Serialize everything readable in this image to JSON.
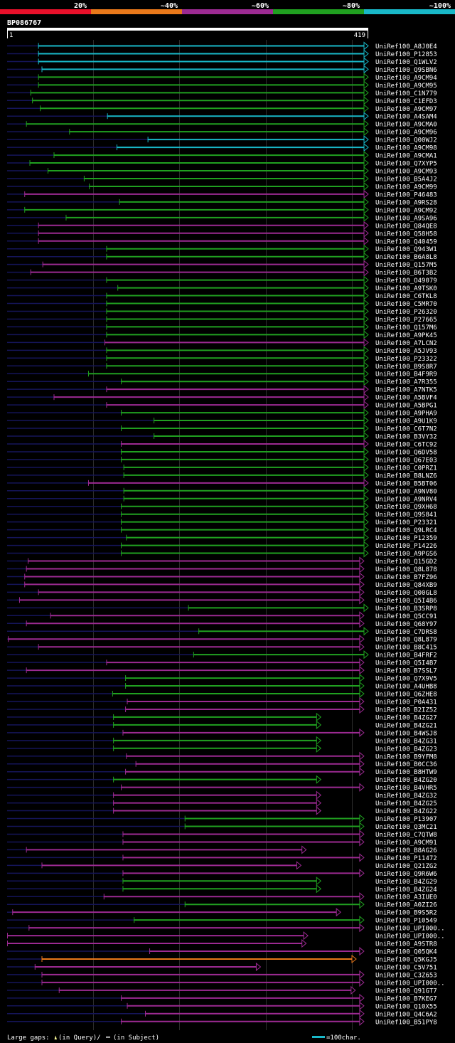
{
  "chart_data": {
    "type": "alignment-overview",
    "title": "BP086767",
    "query_start": "1",
    "query_end": "419",
    "query_length": 419,
    "identity_legend": [
      {
        "label": "20%",
        "color": "#e8102a"
      },
      {
        "label": "~40%",
        "color": "#e8781a"
      },
      {
        "label": "~60%",
        "color": "#9c2a92"
      },
      {
        "label": "~80%",
        "color": "#20a020"
      },
      {
        "label": "~100%",
        "color": "#19b8c8"
      }
    ],
    "footer_gaps_text": "Large gaps: ▲(in Query)/– (in Subject)",
    "footer_gap_query_text": "(in Query)/",
    "footer_gap_subject_text": "(in Subject)",
    "footer_scale_text": "=100char.",
    "hits": [
      {
        "name": "UniRef100_A8J0E4",
        "start": 36,
        "end": 419,
        "id": "~100%"
      },
      {
        "name": "UniRef100_P12853",
        "start": 36,
        "end": 419,
        "id": "~100%"
      },
      {
        "name": "UniRef100_Q1WLV2",
        "start": 36,
        "end": 419,
        "id": "~100%"
      },
      {
        "name": "UniRef100_Q9SBN6",
        "start": 40,
        "end": 419,
        "id": "~100%"
      },
      {
        "name": "UniRef100_A9CM94",
        "start": 36,
        "end": 419,
        "id": "~80%"
      },
      {
        "name": "UniRef100_A9CM95",
        "start": 36,
        "end": 419,
        "id": "~80%"
      },
      {
        "name": "UniRef100_C1N779",
        "start": 27,
        "end": 419,
        "id": "~80%"
      },
      {
        "name": "UniRef100_C1EFD3",
        "start": 29,
        "end": 419,
        "id": "~80%"
      },
      {
        "name": "UniRef100_A9CM97",
        "start": 38,
        "end": 419,
        "id": "~80%"
      },
      {
        "name": "UniRef100_A4SAM4",
        "start": 116,
        "end": 419,
        "id": "~100%"
      },
      {
        "name": "UniRef100_A9CMA0",
        "start": 22,
        "end": 419,
        "id": "~80%"
      },
      {
        "name": "UniRef100_A9CM96",
        "start": 72,
        "end": 419,
        "id": "~80%"
      },
      {
        "name": "UniRef100_Q00WJ2",
        "start": 163,
        "end": 419,
        "id": "~100%"
      },
      {
        "name": "UniRef100_A9CM98",
        "start": 127,
        "end": 419,
        "id": "~100%"
      },
      {
        "name": "UniRef100_A9CMA1",
        "start": 54,
        "end": 419,
        "id": "~80%"
      },
      {
        "name": "UniRef100_Q7XYP5",
        "start": 26,
        "end": 419,
        "id": "~80%"
      },
      {
        "name": "UniRef100_A9CM93",
        "start": 47,
        "end": 419,
        "id": "~80%"
      },
      {
        "name": "UniRef100_B5A4J2",
        "start": 89,
        "end": 419,
        "id": "~80%"
      },
      {
        "name": "UniRef100_A9CM99",
        "start": 95,
        "end": 419,
        "id": "~80%"
      },
      {
        "name": "UniRef100_P46483",
        "start": 20,
        "end": 419,
        "id": "~60%"
      },
      {
        "name": "UniRef100_A9RS28",
        "start": 130,
        "end": 419,
        "id": "~80%"
      },
      {
        "name": "UniRef100_A9CM92",
        "start": 20,
        "end": 419,
        "id": "~80%"
      },
      {
        "name": "UniRef100_A9SA96",
        "start": 68,
        "end": 419,
        "id": "~80%"
      },
      {
        "name": "UniRef100_Q84QE8",
        "start": 36,
        "end": 419,
        "id": "~60%"
      },
      {
        "name": "UniRef100_Q58H58",
        "start": 36,
        "end": 419,
        "id": "~60%"
      },
      {
        "name": "UniRef100_Q40459",
        "start": 36,
        "end": 419,
        "id": "~60%"
      },
      {
        "name": "UniRef100_Q943W1",
        "start": 115,
        "end": 419,
        "id": "~80%"
      },
      {
        "name": "UniRef100_B6A8L8",
        "start": 115,
        "end": 419,
        "id": "~80%"
      },
      {
        "name": "UniRef100_Q157M5",
        "start": 41,
        "end": 419,
        "id": "~60%"
      },
      {
        "name": "UniRef100_B6T3B2",
        "start": 27,
        "end": 419,
        "id": "~60%"
      },
      {
        "name": "UniRef100_O49079",
        "start": 115,
        "end": 419,
        "id": "~80%"
      },
      {
        "name": "UniRef100_A9TSK0",
        "start": 128,
        "end": 419,
        "id": "~80%"
      },
      {
        "name": "UniRef100_C6TKL8",
        "start": 115,
        "end": 419,
        "id": "~80%"
      },
      {
        "name": "UniRef100_C5MR70",
        "start": 115,
        "end": 419,
        "id": "~80%"
      },
      {
        "name": "UniRef100_P26320",
        "start": 115,
        "end": 419,
        "id": "~80%"
      },
      {
        "name": "UniRef100_P27665",
        "start": 115,
        "end": 419,
        "id": "~80%"
      },
      {
        "name": "UniRef100_Q157M6",
        "start": 115,
        "end": 419,
        "id": "~80%"
      },
      {
        "name": "UniRef100_A9PK45",
        "start": 115,
        "end": 419,
        "id": "~80%"
      },
      {
        "name": "UniRef100_A7LCN2",
        "start": 113,
        "end": 419,
        "id": "~60%"
      },
      {
        "name": "UniRef100_A5JV93",
        "start": 115,
        "end": 419,
        "id": "~80%"
      },
      {
        "name": "UniRef100_P23322",
        "start": 115,
        "end": 419,
        "id": "~80%"
      },
      {
        "name": "UniRef100_B9S8R7",
        "start": 115,
        "end": 419,
        "id": "~80%"
      },
      {
        "name": "UniRef100_B4F9R9",
        "start": 94,
        "end": 419,
        "id": "~80%"
      },
      {
        "name": "UniRef100_A7R355",
        "start": 132,
        "end": 419,
        "id": "~80%"
      },
      {
        "name": "UniRef100_A7NTK5",
        "start": 115,
        "end": 419,
        "id": "~60%"
      },
      {
        "name": "UniRef100_A5BVF4",
        "start": 54,
        "end": 419,
        "id": "~60%"
      },
      {
        "name": "UniRef100_A5BPG1",
        "start": 115,
        "end": 419,
        "id": "~60%"
      },
      {
        "name": "UniRef100_A9PHA9",
        "start": 132,
        "end": 419,
        "id": "~80%"
      },
      {
        "name": "UniRef100_A9U1K9",
        "start": 170,
        "end": 419,
        "id": "~80%"
      },
      {
        "name": "UniRef100_C6T7N2",
        "start": 132,
        "end": 419,
        "id": "~80%"
      },
      {
        "name": "UniRef100_B3VY32",
        "start": 170,
        "end": 419,
        "id": "~80%"
      },
      {
        "name": "UniRef100_C6TC92",
        "start": 132,
        "end": 419,
        "id": "~60%"
      },
      {
        "name": "UniRef100_Q6DV58",
        "start": 132,
        "end": 419,
        "id": "~80%"
      },
      {
        "name": "UniRef100_Q67E03",
        "start": 132,
        "end": 419,
        "id": "~80%"
      },
      {
        "name": "UniRef100_C0PRZ1",
        "start": 135,
        "end": 419,
        "id": "~80%"
      },
      {
        "name": "UniRef100_B8LNZ6",
        "start": 135,
        "end": 419,
        "id": "~80%"
      },
      {
        "name": "UniRef100_B5BT06",
        "start": 94,
        "end": 419,
        "id": "~60%"
      },
      {
        "name": "UniRef100_A9NV80",
        "start": 135,
        "end": 419,
        "id": "~80%"
      },
      {
        "name": "UniRef100_A9NRV4",
        "start": 135,
        "end": 419,
        "id": "~80%"
      },
      {
        "name": "UniRef100_Q9XH68",
        "start": 132,
        "end": 419,
        "id": "~80%"
      },
      {
        "name": "UniRef100_Q9S841",
        "start": 132,
        "end": 419,
        "id": "~80%"
      },
      {
        "name": "UniRef100_P23321",
        "start": 132,
        "end": 419,
        "id": "~80%"
      },
      {
        "name": "UniRef100_Q9LRC4",
        "start": 132,
        "end": 419,
        "id": "~80%"
      },
      {
        "name": "UniRef100_P12359",
        "start": 138,
        "end": 419,
        "id": "~80%"
      },
      {
        "name": "UniRef100_P14226",
        "start": 132,
        "end": 419,
        "id": "~80%"
      },
      {
        "name": "UniRef100_A9PGS6",
        "start": 132,
        "end": 419,
        "id": "~80%"
      },
      {
        "name": "UniRef100_Q15GD2",
        "start": 24,
        "end": 414,
        "id": "~60%"
      },
      {
        "name": "UniRef100_Q8L878",
        "start": 22,
        "end": 414,
        "id": "~60%"
      },
      {
        "name": "UniRef100_B7FZ96",
        "start": 20,
        "end": 414,
        "id": "~60%"
      },
      {
        "name": "UniRef100_Q84XB9",
        "start": 20,
        "end": 414,
        "id": "~60%"
      },
      {
        "name": "UniRef100_Q00GL8",
        "start": 36,
        "end": 414,
        "id": "~60%"
      },
      {
        "name": "UniRef100_Q5I4B6",
        "start": 14,
        "end": 414,
        "id": "~60%"
      },
      {
        "name": "UniRef100_B3SRP8",
        "start": 210,
        "end": 419,
        "id": "~80%"
      },
      {
        "name": "UniRef100_Q5CC91",
        "start": 50,
        "end": 414,
        "id": "~60%"
      },
      {
        "name": "UniRef100_Q68Y97",
        "start": 22,
        "end": 414,
        "id": "~60%"
      },
      {
        "name": "UniRef100_C7DRS8",
        "start": 222,
        "end": 419,
        "id": "~80%"
      },
      {
        "name": "UniRef100_Q8L879",
        "start": 1,
        "end": 414,
        "id": "~60%"
      },
      {
        "name": "UniRef100_B8C415",
        "start": 36,
        "end": 414,
        "id": "~60%"
      },
      {
        "name": "UniRef100_B4FRF2",
        "start": 216,
        "end": 419,
        "id": "~80%"
      },
      {
        "name": "UniRef100_Q5I4B7",
        "start": 115,
        "end": 414,
        "id": "~60%"
      },
      {
        "name": "UniRef100_B7SSL7",
        "start": 22,
        "end": 414,
        "id": "~60%"
      },
      {
        "name": "UniRef100_Q7X9V5",
        "start": 137,
        "end": 414,
        "id": "~80%"
      },
      {
        "name": "UniRef100_A4UHB8",
        "start": 137,
        "end": 414,
        "id": "~80%"
      },
      {
        "name": "UniRef100_Q6ZHE8",
        "start": 122,
        "end": 414,
        "id": "~80%"
      },
      {
        "name": "UniRef100_P0A431",
        "start": 139,
        "end": 414,
        "id": "~60%"
      },
      {
        "name": "UniRef100_B2IZ52",
        "start": 137,
        "end": 414,
        "id": "~60%"
      },
      {
        "name": "UniRef100_B4ZG27",
        "start": 123,
        "end": 364,
        "id": "~80%"
      },
      {
        "name": "UniRef100_B4ZG21",
        "start": 123,
        "end": 364,
        "id": "~80%"
      },
      {
        "name": "UniRef100_B4WSJ8",
        "start": 134,
        "end": 414,
        "id": "~60%"
      },
      {
        "name": "UniRef100_B4ZG31",
        "start": 123,
        "end": 364,
        "id": "~80%"
      },
      {
        "name": "UniRef100_B4ZG23",
        "start": 123,
        "end": 364,
        "id": "~80%"
      },
      {
        "name": "UniRef100_B9YFM8",
        "start": 138,
        "end": 414,
        "id": "~60%"
      },
      {
        "name": "UniRef100_B0CC36",
        "start": 149,
        "end": 414,
        "id": "~60%"
      },
      {
        "name": "UniRef100_B8HTW9",
        "start": 137,
        "end": 414,
        "id": "~60%"
      },
      {
        "name": "UniRef100_B4ZG20",
        "start": 123,
        "end": 364,
        "id": "~80%"
      },
      {
        "name": "UniRef100_B4VHR5",
        "start": 132,
        "end": 414,
        "id": "~60%"
      },
      {
        "name": "UniRef100_B4ZG32",
        "start": 123,
        "end": 364,
        "id": "~60%"
      },
      {
        "name": "UniRef100_B4ZG25",
        "start": 123,
        "end": 364,
        "id": "~60%"
      },
      {
        "name": "UniRef100_B4ZG22",
        "start": 123,
        "end": 364,
        "id": "~60%"
      },
      {
        "name": "UniRef100_P13907",
        "start": 206,
        "end": 414,
        "id": "~80%"
      },
      {
        "name": "UniRef100_Q3MC21",
        "start": 206,
        "end": 414,
        "id": "~80%"
      },
      {
        "name": "UniRef100_C7QTW8",
        "start": 134,
        "end": 414,
        "id": "~60%"
      },
      {
        "name": "UniRef100_A9CM91",
        "start": 134,
        "end": 414,
        "id": "~60%"
      },
      {
        "name": "UniRef100_B8AG26",
        "start": 22,
        "end": 347,
        "id": "~60%"
      },
      {
        "name": "UniRef100_P11472",
        "start": 134,
        "end": 414,
        "id": "~60%"
      },
      {
        "name": "UniRef100_Q21ZG2",
        "start": 40,
        "end": 341,
        "id": "~60%"
      },
      {
        "name": "UniRef100_Q9R6W6",
        "start": 134,
        "end": 414,
        "id": "~60%"
      },
      {
        "name": "UniRef100_B4ZG29",
        "start": 134,
        "end": 364,
        "id": "~80%"
      },
      {
        "name": "UniRef100_B4ZG24",
        "start": 134,
        "end": 364,
        "id": "~80%"
      },
      {
        "name": "UniRef100_A3IUE0",
        "start": 112,
        "end": 414,
        "id": "~60%"
      },
      {
        "name": "UniRef100_A0ZI26",
        "start": 206,
        "end": 414,
        "id": "~80%"
      },
      {
        "name": "UniRef100_B9S5R2",
        "start": 6,
        "end": 387,
        "id": "~60%"
      },
      {
        "name": "UniRef100_P10549",
        "start": 147,
        "end": 414,
        "id": "~80%"
      },
      {
        "name": "UniRef100_UPI000..",
        "start": 25,
        "end": 414,
        "id": "~60%"
      },
      {
        "name": "UniRef100_UPI000..",
        "start": 0,
        "end": 349,
        "id": "~60%"
      },
      {
        "name": "UniRef100_A9STR8",
        "start": 0,
        "end": 347,
        "id": "~60%"
      },
      {
        "name": "UniRef100_Q05QK4",
        "start": 165,
        "end": 414,
        "id": "~60%"
      },
      {
        "name": "UniRef100_Q5KGJ5",
        "start": 40,
        "end": 405,
        "id": "~40%"
      },
      {
        "name": "UniRef100_C5V751",
        "start": 32,
        "end": 294,
        "id": "~60%"
      },
      {
        "name": "UniRef100_C3Z653",
        "start": 40,
        "end": 414,
        "id": "~60%"
      },
      {
        "name": "UniRef100_UPI000..",
        "start": 40,
        "end": 414,
        "id": "~60%"
      },
      {
        "name": "UniRef100_Q91GT7",
        "start": 60,
        "end": 404,
        "id": "~60%"
      },
      {
        "name": "UniRef100_B7KEG7",
        "start": 132,
        "end": 414,
        "id": "~60%"
      },
      {
        "name": "UniRef100_Q10X55",
        "start": 139,
        "end": 414,
        "id": "~60%"
      },
      {
        "name": "UniRef100_Q4C6A2",
        "start": 160,
        "end": 414,
        "id": "~60%"
      },
      {
        "name": "UniRef100_B51PY8",
        "start": 132,
        "end": 414,
        "id": "~60%"
      }
    ]
  }
}
